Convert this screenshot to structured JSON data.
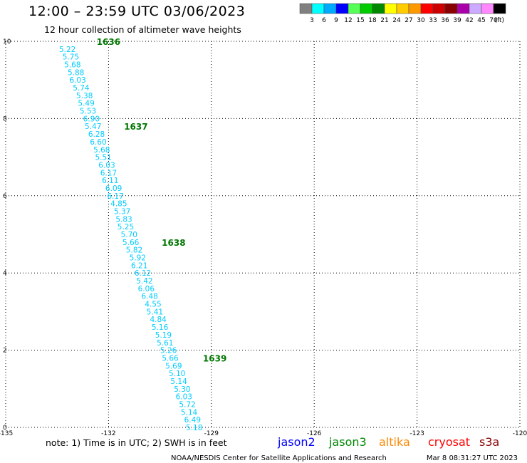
{
  "header": {
    "title": "12:00 – 23:59 UTC 03/06/2023",
    "subtitle": "12 hour collection of altimeter wave heights"
  },
  "legend": {
    "labels": [
      "3",
      "6",
      "9",
      "12",
      "15",
      "18",
      "21",
      "24",
      "27",
      "30",
      "33",
      "36",
      "39",
      "42",
      "45",
      "70"
    ],
    "unit": "(ft)",
    "colors": [
      "#808080",
      "#00ffff",
      "#00aaff",
      "#0000ff",
      "#55ff55",
      "#00cc00",
      "#008800",
      "#ffff00",
      "#ffcc00",
      "#ff9900",
      "#ff0000",
      "#cc0000",
      "#880000",
      "#aa00aa",
      "#ccaaff",
      "#ff88ff",
      "#000000"
    ]
  },
  "footer": {
    "note": "note:  1) Time is in UTC;  2) SWH is in feet",
    "satellites": [
      {
        "name": "jason2",
        "color": "#0000ff"
      },
      {
        "name": "jason3",
        "color": "#008800"
      },
      {
        "name": "altika",
        "color": "#ff8800"
      },
      {
        "name": "cryosat",
        "color": "#ff0000"
      },
      {
        "name": "s3a",
        "color": "#880000"
      }
    ],
    "credit": "NOAA/NESDIS Center for Satellite Applications and Research",
    "timestamp": "Mar  8 08:31:27 UTC 2023"
  },
  "chart_data": {
    "type": "scatter",
    "x_ticks": [
      "-135",
      "-132",
      "-129",
      "-126",
      "-123",
      "-120"
    ],
    "y_ticks": [
      "0",
      "2",
      "4",
      "6",
      "8",
      "10"
    ],
    "xlim": [
      -135,
      -120
    ],
    "ylim": [
      0,
      10
    ],
    "grid": true,
    "value_color": "#00ccff",
    "time_color": "#007700",
    "points": [
      {
        "x": -133.2,
        "y": 9.8,
        "value": "5.22"
      },
      {
        "x": -133.1,
        "y": 9.6,
        "value": "5.75"
      },
      {
        "x": -133.05,
        "y": 9.4,
        "value": "5.68"
      },
      {
        "x": -132.95,
        "y": 9.2,
        "value": "5.88"
      },
      {
        "x": -132.9,
        "y": 9.0,
        "value": "6.03"
      },
      {
        "x": -132.8,
        "y": 8.8,
        "value": "5.74"
      },
      {
        "x": -132.7,
        "y": 8.6,
        "value": "5.38"
      },
      {
        "x": -132.65,
        "y": 8.4,
        "value": "5.49"
      },
      {
        "x": -132.6,
        "y": 8.2,
        "value": "5.53"
      },
      {
        "x": -132.5,
        "y": 8.0,
        "value": "6.90"
      },
      {
        "x": -132.45,
        "y": 7.8,
        "value": "5.47"
      },
      {
        "x": -132.35,
        "y": 7.6,
        "value": "6.28"
      },
      {
        "x": -132.3,
        "y": 7.4,
        "value": "6.60"
      },
      {
        "x": -132.2,
        "y": 7.2,
        "value": "5.68"
      },
      {
        "x": -132.15,
        "y": 7.0,
        "value": "5.51"
      },
      {
        "x": -132.05,
        "y": 6.8,
        "value": "6.03"
      },
      {
        "x": -132.0,
        "y": 6.6,
        "value": "6.17"
      },
      {
        "x": -131.95,
        "y": 6.4,
        "value": "6.11"
      },
      {
        "x": -131.85,
        "y": 6.2,
        "value": "6.09"
      },
      {
        "x": -131.8,
        "y": 6.0,
        "value": "6.17"
      },
      {
        "x": -131.7,
        "y": 5.8,
        "value": "4.85"
      },
      {
        "x": -131.6,
        "y": 5.6,
        "value": "5.37"
      },
      {
        "x": -131.55,
        "y": 5.4,
        "value": "5.83"
      },
      {
        "x": -131.5,
        "y": 5.2,
        "value": "5.25"
      },
      {
        "x": -131.4,
        "y": 5.0,
        "value": "5.70"
      },
      {
        "x": -131.35,
        "y": 4.8,
        "value": "5.66"
      },
      {
        "x": -131.25,
        "y": 4.6,
        "value": "5.82"
      },
      {
        "x": -131.15,
        "y": 4.4,
        "value": "5.92"
      },
      {
        "x": -131.1,
        "y": 4.2,
        "value": "6.21"
      },
      {
        "x": -131.0,
        "y": 4.0,
        "value": "6.12"
      },
      {
        "x": -130.95,
        "y": 3.8,
        "value": "5.42"
      },
      {
        "x": -130.9,
        "y": 3.6,
        "value": "6.06"
      },
      {
        "x": -130.8,
        "y": 3.4,
        "value": "6.48"
      },
      {
        "x": -130.7,
        "y": 3.2,
        "value": "4.55"
      },
      {
        "x": -130.65,
        "y": 3.0,
        "value": "5.41"
      },
      {
        "x": -130.55,
        "y": 2.8,
        "value": "4.84"
      },
      {
        "x": -130.5,
        "y": 2.6,
        "value": "5.16"
      },
      {
        "x": -130.4,
        "y": 2.4,
        "value": "5.19"
      },
      {
        "x": -130.35,
        "y": 2.2,
        "value": "5.61"
      },
      {
        "x": -130.25,
        "y": 2.0,
        "value": "5.26"
      },
      {
        "x": -130.2,
        "y": 1.8,
        "value": "5.66"
      },
      {
        "x": -130.1,
        "y": 1.6,
        "value": "5.69"
      },
      {
        "x": -130.0,
        "y": 1.4,
        "value": "5.10"
      },
      {
        "x": -129.95,
        "y": 1.2,
        "value": "5.14"
      },
      {
        "x": -129.85,
        "y": 1.0,
        "value": "5.30"
      },
      {
        "x": -129.8,
        "y": 0.8,
        "value": "6.03"
      },
      {
        "x": -129.7,
        "y": 0.6,
        "value": "5.72"
      },
      {
        "x": -129.65,
        "y": 0.4,
        "value": "5.14"
      },
      {
        "x": -129.55,
        "y": 0.2,
        "value": "6.49"
      },
      {
        "x": -129.5,
        "y": 0.0,
        "value": "5.18"
      }
    ],
    "time_labels": [
      {
        "x": -132.0,
        "y": 10.0,
        "label": "1636"
      },
      {
        "x": -131.2,
        "y": 7.8,
        "label": "1637"
      },
      {
        "x": -130.1,
        "y": 4.8,
        "label": "1638"
      },
      {
        "x": -128.9,
        "y": 1.8,
        "label": "1639"
      }
    ]
  }
}
